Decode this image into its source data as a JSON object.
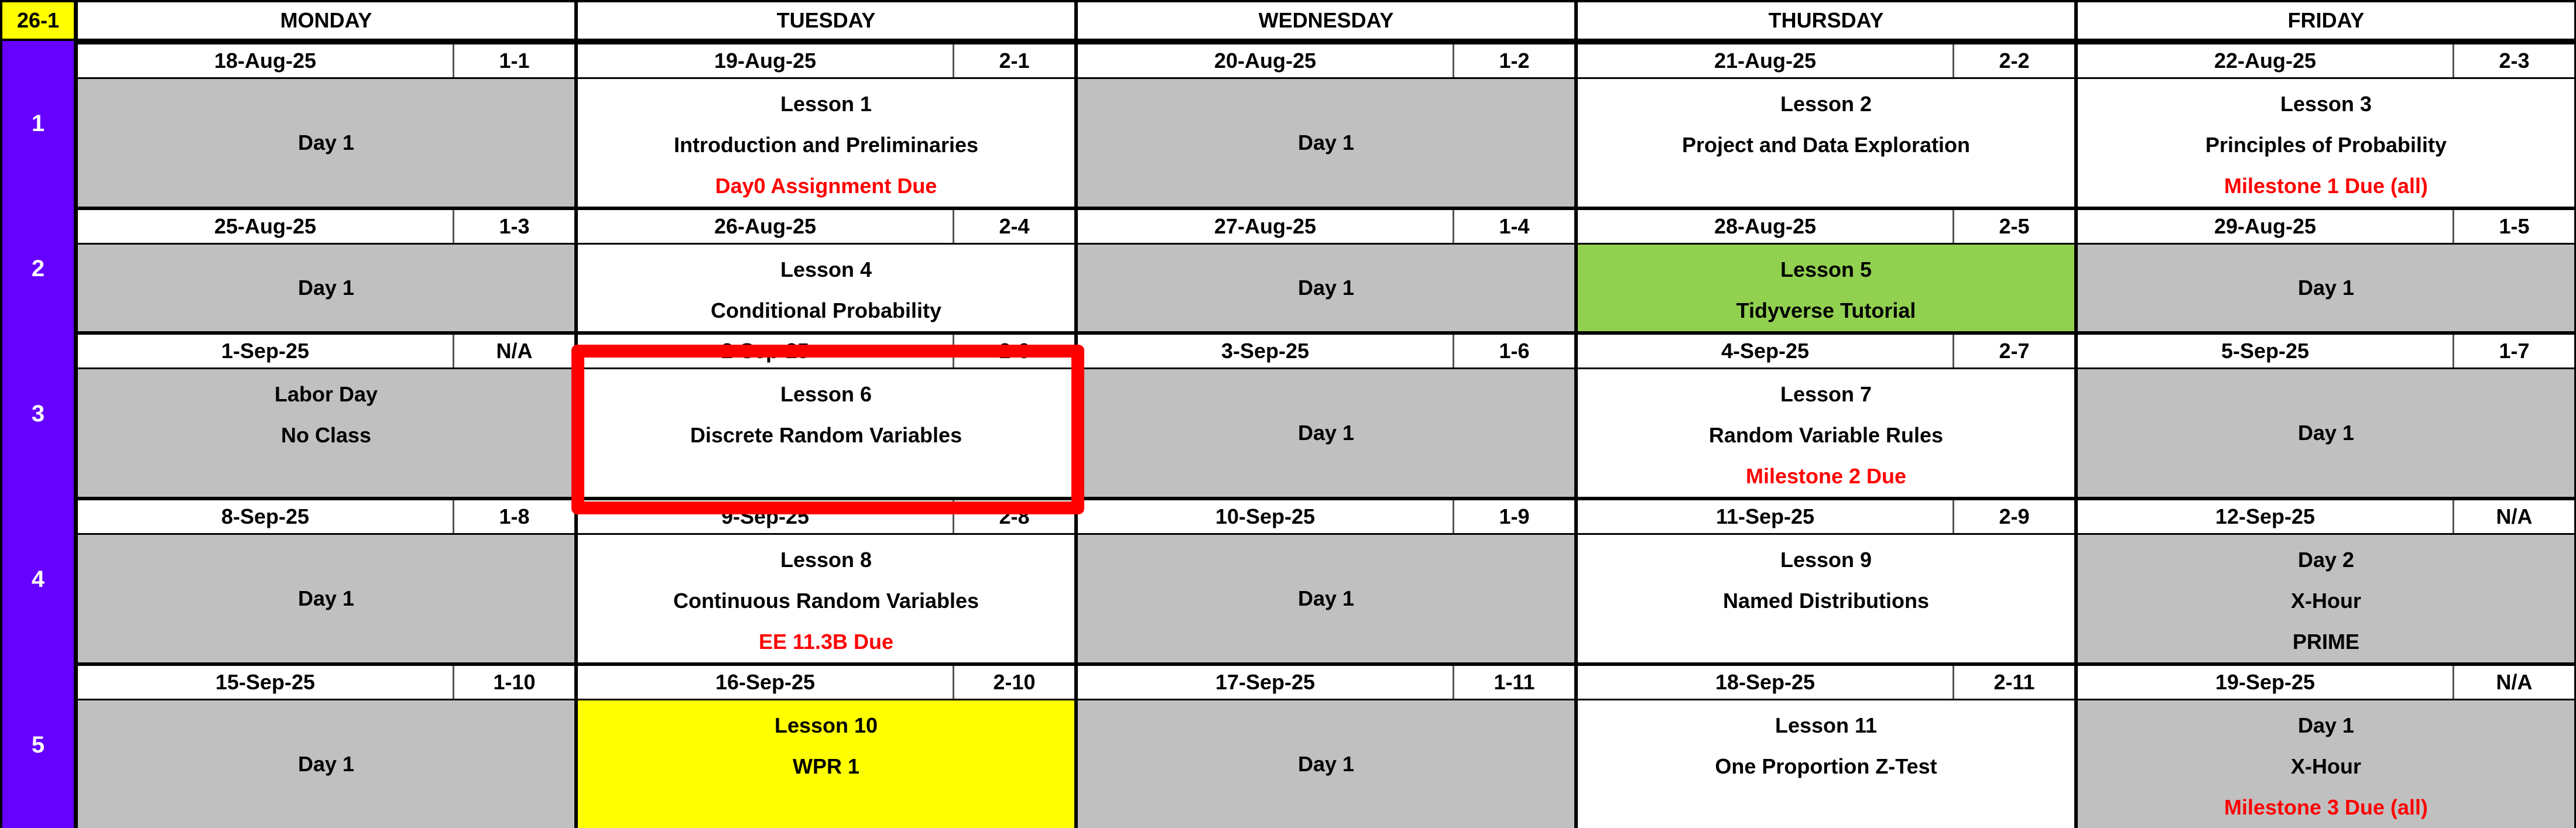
{
  "corner_label": "26-1",
  "day_headers": [
    "MONDAY",
    "TUESDAY",
    "WEDNESDAY",
    "THURSDAY",
    "FRIDAY"
  ],
  "colors": {
    "week_column": "#6600ff",
    "corner": "#ffff00",
    "off_day": "#c0c0c0",
    "lesson": "#ffffff",
    "tutorial": "#92d050",
    "exam": "#ffff00",
    "due_text": "#ff0000",
    "highlight": "#ff0000"
  },
  "weeks": [
    {
      "number": "1",
      "days": [
        {
          "date": "18-Aug-25",
          "code": "1-1",
          "bg": "#c0c0c0",
          "center": true,
          "lines": [
            {
              "text": "Day 1",
              "color": "#000000"
            }
          ]
        },
        {
          "date": "19-Aug-25",
          "code": "2-1",
          "bg": "#ffffff",
          "lines": [
            {
              "text": "Lesson 1",
              "color": "#000000"
            },
            {
              "text": "Introduction and Preliminaries",
              "color": "#000000"
            },
            {
              "text": "Day0 Assignment Due",
              "color": "#ff0000"
            }
          ]
        },
        {
          "date": "20-Aug-25",
          "code": "1-2",
          "bg": "#c0c0c0",
          "center": true,
          "lines": [
            {
              "text": "Day 1",
              "color": "#000000"
            }
          ]
        },
        {
          "date": "21-Aug-25",
          "code": "2-2",
          "bg": "#ffffff",
          "lines": [
            {
              "text": "Lesson 2",
              "color": "#000000"
            },
            {
              "text": "Project and Data Exploration",
              "color": "#000000"
            }
          ]
        },
        {
          "date": "22-Aug-25",
          "code": "2-3",
          "bg": "#ffffff",
          "lines": [
            {
              "text": "Lesson 3",
              "color": "#000000"
            },
            {
              "text": "Principles of Probability",
              "color": "#000000"
            },
            {
              "text": "Milestone 1 Due (all)",
              "color": "#ff0000"
            }
          ]
        }
      ]
    },
    {
      "number": "2",
      "days": [
        {
          "date": "25-Aug-25",
          "code": "1-3",
          "bg": "#c0c0c0",
          "center": true,
          "lines": [
            {
              "text": "Day 1",
              "color": "#000000"
            }
          ]
        },
        {
          "date": "26-Aug-25",
          "code": "2-4",
          "bg": "#ffffff",
          "lines": [
            {
              "text": "Lesson 4",
              "color": "#000000"
            },
            {
              "text": "Conditional Probability",
              "color": "#000000"
            }
          ]
        },
        {
          "date": "27-Aug-25",
          "code": "1-4",
          "bg": "#c0c0c0",
          "center": true,
          "lines": [
            {
              "text": "Day 1",
              "color": "#000000"
            }
          ]
        },
        {
          "date": "28-Aug-25",
          "code": "2-5",
          "bg": "#92d050",
          "lines": [
            {
              "text": "Lesson 5",
              "color": "#000000"
            },
            {
              "text": "Tidyverse Tutorial",
              "color": "#000000"
            }
          ]
        },
        {
          "date": "29-Aug-25",
          "code": "1-5",
          "bg": "#c0c0c0",
          "center": true,
          "lines": [
            {
              "text": "Day 1",
              "color": "#000000"
            }
          ]
        }
      ]
    },
    {
      "number": "3",
      "days": [
        {
          "date": "1-Sep-25",
          "code": "N/A",
          "bg": "#c0c0c0",
          "lines": [
            {
              "text": "Labor Day",
              "color": "#000000"
            },
            {
              "text": "No Class",
              "color": "#000000"
            }
          ]
        },
        {
          "date": "2-Sep-25",
          "code": "2-6",
          "bg": "#ffffff",
          "lines": [
            {
              "text": "Lesson 6",
              "color": "#000000"
            },
            {
              "text": "Discrete Random Variables",
              "color": "#000000"
            }
          ]
        },
        {
          "date": "3-Sep-25",
          "code": "1-6",
          "bg": "#c0c0c0",
          "center": true,
          "lines": [
            {
              "text": "Day 1",
              "color": "#000000"
            }
          ]
        },
        {
          "date": "4-Sep-25",
          "code": "2-7",
          "bg": "#ffffff",
          "lines": [
            {
              "text": "Lesson 7",
              "color": "#000000"
            },
            {
              "text": "Random Variable Rules",
              "color": "#000000"
            },
            {
              "text": "Milestone 2 Due",
              "color": "#ff0000"
            }
          ]
        },
        {
          "date": "5-Sep-25",
          "code": "1-7",
          "bg": "#c0c0c0",
          "center": true,
          "lines": [
            {
              "text": "Day 1",
              "color": "#000000"
            }
          ]
        }
      ]
    },
    {
      "number": "4",
      "days": [
        {
          "date": "8-Sep-25",
          "code": "1-8",
          "bg": "#c0c0c0",
          "center": true,
          "lines": [
            {
              "text": "Day 1",
              "color": "#000000"
            }
          ]
        },
        {
          "date": "9-Sep-25",
          "code": "2-8",
          "bg": "#ffffff",
          "lines": [
            {
              "text": "Lesson 8",
              "color": "#000000"
            },
            {
              "text": "Continuous Random Variables",
              "color": "#000000"
            },
            {
              "text": "EE 11.3B Due",
              "color": "#ff0000"
            }
          ]
        },
        {
          "date": "10-Sep-25",
          "code": "1-9",
          "bg": "#c0c0c0",
          "center": true,
          "lines": [
            {
              "text": "Day 1",
              "color": "#000000"
            }
          ]
        },
        {
          "date": "11-Sep-25",
          "code": "2-9",
          "bg": "#ffffff",
          "lines": [
            {
              "text": "Lesson 9",
              "color": "#000000"
            },
            {
              "text": "Named Distributions",
              "color": "#000000"
            }
          ]
        },
        {
          "date": "12-Sep-25",
          "code": "N/A",
          "bg": "#c0c0c0",
          "lines": [
            {
              "text": "Day 2",
              "color": "#000000"
            },
            {
              "text": "X-Hour",
              "color": "#000000"
            },
            {
              "text": "PRIME",
              "color": "#000000"
            }
          ]
        }
      ]
    },
    {
      "number": "5",
      "days": [
        {
          "date": "15-Sep-25",
          "code": "1-10",
          "bg": "#c0c0c0",
          "center": true,
          "lines": [
            {
              "text": "Day 1",
              "color": "#000000"
            }
          ]
        },
        {
          "date": "16-Sep-25",
          "code": "2-10",
          "bg": "#ffff00",
          "lines": [
            {
              "text": "Lesson 10",
              "color": "#000000"
            },
            {
              "text": "WPR 1",
              "color": "#000000"
            }
          ]
        },
        {
          "date": "17-Sep-25",
          "code": "1-11",
          "bg": "#c0c0c0",
          "center": true,
          "lines": [
            {
              "text": "Day 1",
              "color": "#000000"
            }
          ]
        },
        {
          "date": "18-Sep-25",
          "code": "2-11",
          "bg": "#ffffff",
          "lines": [
            {
              "text": "Lesson 11",
              "color": "#000000"
            },
            {
              "text": "One Proportion Z-Test",
              "color": "#000000"
            }
          ]
        },
        {
          "date": "19-Sep-25",
          "code": "N/A",
          "bg": "#c0c0c0",
          "lines": [
            {
              "text": "Day 1",
              "color": "#000000"
            },
            {
              "text": "X-Hour",
              "color": "#000000"
            },
            {
              "text": "Milestone 3 Due (all)",
              "color": "#ff0000"
            }
          ]
        }
      ]
    }
  ]
}
